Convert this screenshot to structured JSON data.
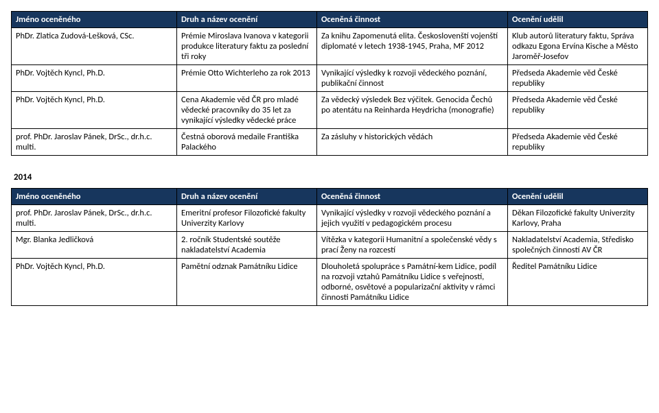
{
  "table1": {
    "headers": [
      "Jméno oceněného",
      "Druh a název ocenění",
      "Oceněná činnost",
      "Ocenění udělil"
    ],
    "rows": [
      {
        "name": "PhDr. Zlatica Zudová-Lešková, CSc.",
        "award": "Prémie Miroslava Ivanova v kategorii produkce literatury faktu za poslední tři roky",
        "activity": "Za knihu Zapomenutá elita. Českoslovenští vojenští diplomaté v letech 1938-1945, Praha, MF 2012",
        "granted": "Klub autorů literatury faktu, Správa odkazu Egona Ervína Kische a Město Jaroměř-Josefov"
      },
      {
        "name": "PhDr. Vojtěch Kyncl, Ph.D.",
        "award": "Prémie Otto Wichterleho za rok 2013",
        "activity": "Vynikající výsledky k rozvoji vědeckého poznání, publikační činnost",
        "granted": "Předseda Akademie věd České republiky"
      },
      {
        "name": "PhDr. Vojtěch Kyncl, Ph.D.",
        "award": "Cena Akademie věd ČR pro mladé vědecké pracovníky do 35 let za vynikající výsledky vědecké práce",
        "activity": "Za vědecký výsledek Bez výčitek. Genocida Čechů po atentátu na Reinharda Heydricha (monografie)",
        "granted": "Předseda Akademie věd České republiky"
      },
      {
        "name": "prof. PhDr. Jaroslav Pánek, DrSc., dr.h.c. multi.",
        "award": "Čestná oborová medaile Františka Palackého",
        "activity": "Za zásluhy v historických vědách",
        "granted": "Předseda Akademie věd České republiky"
      }
    ]
  },
  "year_label": "2014",
  "table2": {
    "headers": [
      "Jméno oceněného",
      "Druh a název ocenění",
      "Oceněná činnost",
      "Ocenění udělil"
    ],
    "rows": [
      {
        "name": "prof. PhDr. Jaroslav Pánek, DrSc., dr.h.c. multi.",
        "award": "Emeritní profesor Filozofické fakulty Univerzity Karlovy",
        "activity": "Vynikající výsledky v rozvoji vědeckého poznání a jejich využití v pedagogickém procesu",
        "granted": "Děkan Filozofické fakulty Univerzity Karlovy, Praha"
      },
      {
        "name": "Mgr. Blanka Jedličková",
        "award": "2. ročník Studentské soutěže nakladatelství Academia",
        "activity": "Vítězka v kategorii Humanitní a společenské vědy s prací Ženy na rozcestí",
        "granted": "Nakladatelství Academia, Středisko společných činností AV ČR"
      },
      {
        "name": "PhDr. Vojtěch Kyncl, Ph.D.",
        "award": "Pamětní odznak Památníku Lidice",
        "activity": "Dlouholetá spolupráce s Památní-kem Lidice, podíl na rozvoji vztahů Památníku Lidice s veřejností, odborné, osvětové a popularizační aktivity v rámci činnosti Památníku Lidice",
        "granted": "Ředitel Památníku Lidice"
      }
    ]
  }
}
